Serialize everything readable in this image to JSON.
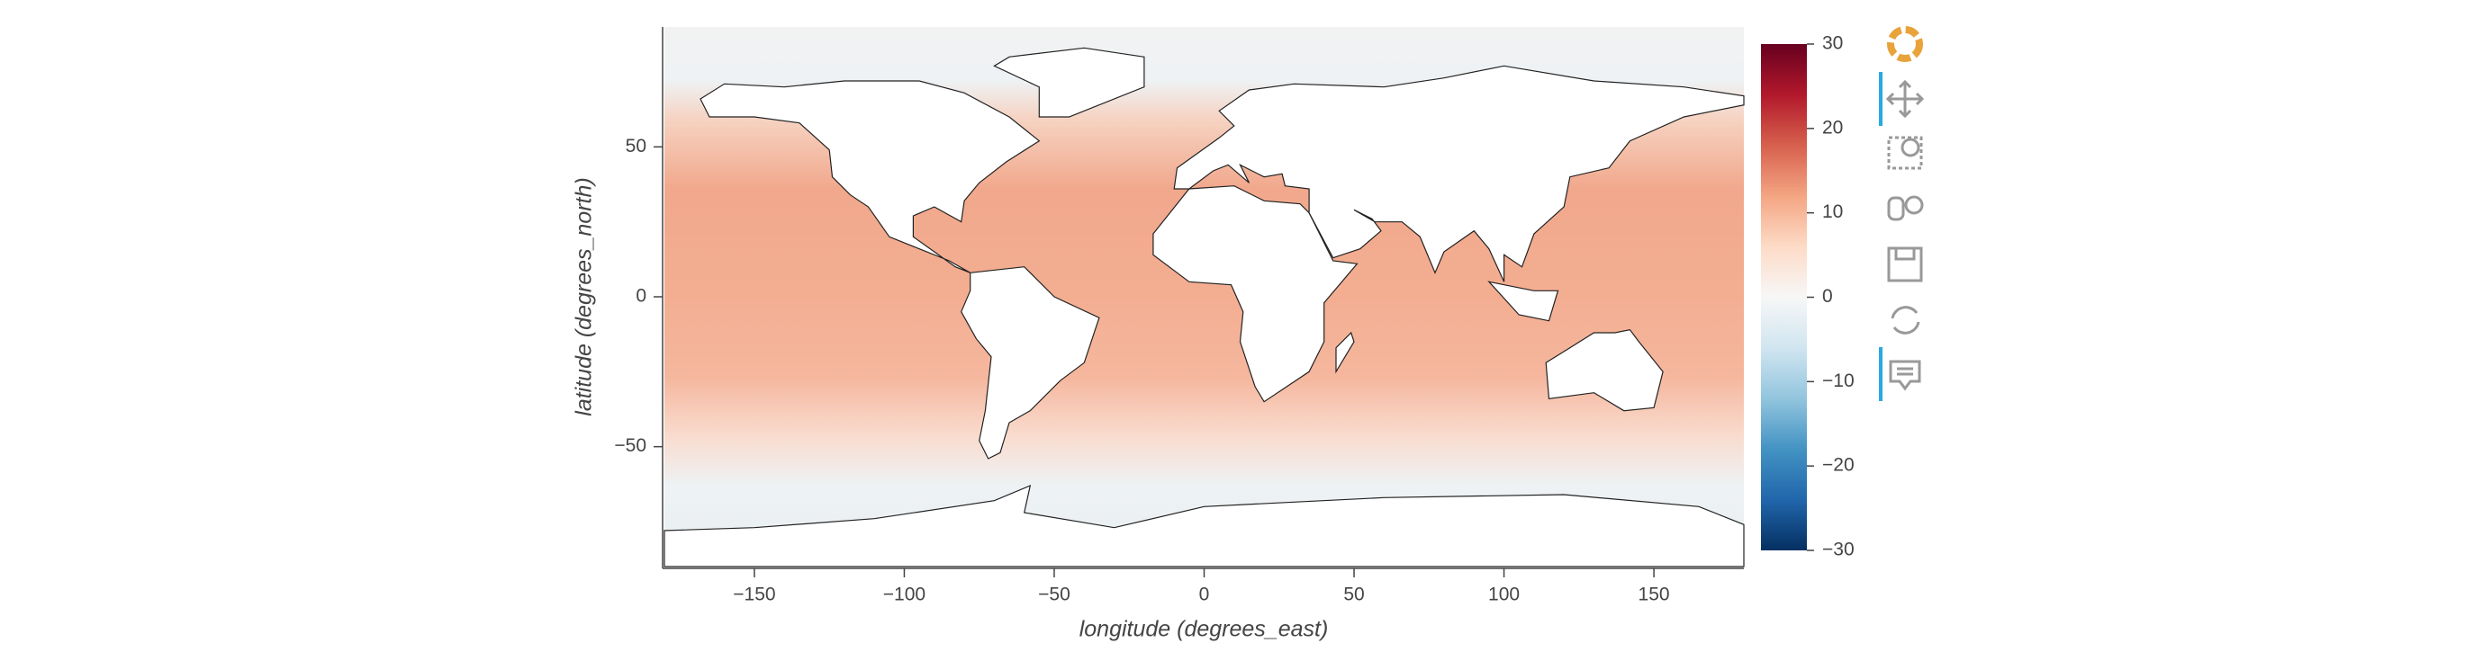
{
  "chart_data": {
    "type": "quadmesh",
    "xlabel": "longitude (degrees_east)",
    "ylabel": "latitude (degrees_north)",
    "xlim": [
      -180,
      180
    ],
    "ylim": [
      -90,
      90
    ],
    "xticks": [
      {
        "value": -150,
        "label": "−150"
      },
      {
        "value": -100,
        "label": "−100"
      },
      {
        "value": -50,
        "label": "−50"
      },
      0,
      50,
      100,
      150
    ],
    "yticks": [
      {
        "value": -50,
        "label": "−50"
      },
      0,
      50
    ],
    "clim": [
      -30,
      30
    ],
    "cticks": [
      {
        "value": -30,
        "label": "−30"
      },
      {
        "value": -20,
        "label": "−20"
      },
      {
        "value": -10,
        "label": "−10"
      },
      0,
      10,
      20,
      30
    ],
    "colormap": [
      "#053061",
      "#2166ac",
      "#4393c3",
      "#92c5de",
      "#d1e5f0",
      "#f7f7f7",
      "#fddbc7",
      "#f4a582",
      "#d6604d",
      "#b2182b",
      "#67001f"
    ]
  }
}
